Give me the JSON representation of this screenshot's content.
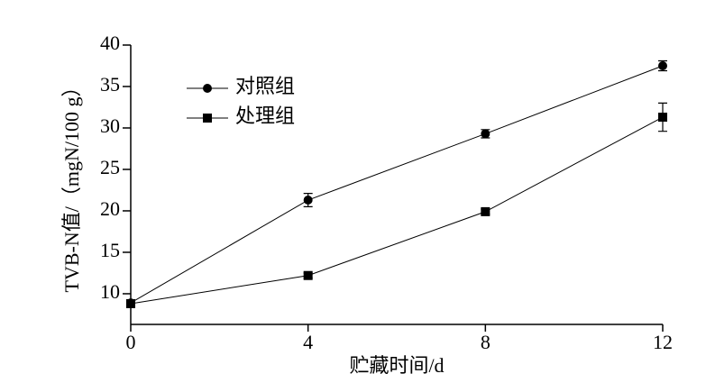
{
  "chart_data": {
    "type": "line",
    "xlabel": "贮藏时间/d",
    "ylabel": "TVB-N值/（mgN/100 g）",
    "x": [
      0,
      4,
      8,
      12
    ],
    "series": [
      {
        "name": "对照组",
        "color": "#000000",
        "marker": "circle",
        "values": [
          8.9,
          21.3,
          29.3,
          37.5
        ],
        "errors": [
          0.3,
          0.8,
          0.5,
          0.6
        ]
      },
      {
        "name": "处理组",
        "color": "#000000",
        "marker": "square",
        "values": [
          8.8,
          12.2,
          19.9,
          31.3
        ],
        "errors": [
          0.3,
          0.3,
          0.3,
          1.7
        ]
      }
    ],
    "xlim": [
      0,
      12
    ],
    "xticks": [
      0,
      4,
      8,
      12
    ],
    "ylim": [
      6.3,
      40
    ],
    "yticks": [
      10,
      15,
      20,
      25,
      30,
      35,
      40
    ],
    "grid": false,
    "legend": "upper left"
  }
}
